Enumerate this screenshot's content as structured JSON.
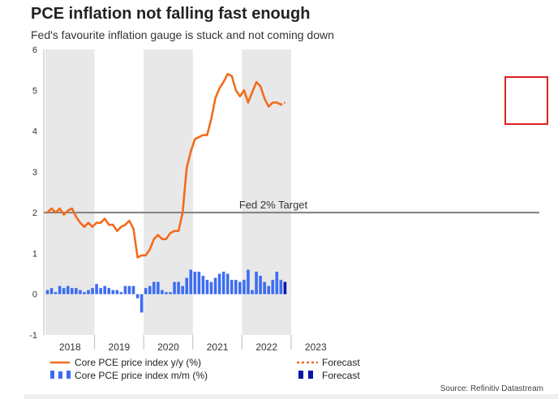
{
  "chart_data": {
    "type": "line",
    "title": "PCE inflation not falling fast enough",
    "subtitle": "Fed's favourite inflation gauge is stuck and not coming down",
    "source": "Source: Refinitiv Datastream",
    "ylim": [
      -1,
      6
    ],
    "y_ticks": [
      "-1",
      "0",
      "1",
      "2",
      "3",
      "4",
      "5",
      "6"
    ],
    "x_tick_labels": [
      "2018",
      "2019",
      "2020",
      "2021",
      "2022",
      "2023"
    ],
    "x_start": "2018-01",
    "shaded_years": [
      "2018",
      "2020",
      "2022"
    ],
    "grid": false,
    "reference_line": {
      "label": "Fed 2% Target",
      "value": 2
    },
    "series": [
      {
        "name": "Core PCE price index y/y (%)",
        "kind": "line",
        "color": "#f26b1d",
        "values": [
          2.0,
          2.1,
          2.0,
          2.1,
          1.95,
          2.05,
          2.1,
          1.9,
          1.75,
          1.65,
          1.75,
          1.65,
          1.75,
          1.75,
          1.85,
          1.7,
          1.7,
          1.55,
          1.65,
          1.7,
          1.8,
          1.6,
          0.9,
          0.95,
          0.95,
          1.1,
          1.35,
          1.45,
          1.35,
          1.35,
          1.5,
          1.55,
          1.55,
          2.0,
          3.1,
          3.5,
          3.8,
          3.85,
          3.9,
          3.9,
          4.3,
          4.8,
          5.05,
          5.2,
          5.4,
          5.35,
          5.0,
          4.85,
          5.0,
          4.7,
          4.95,
          5.2,
          5.1,
          4.8,
          4.6,
          4.7,
          4.7,
          4.65
        ]
      },
      {
        "name": "Forecast",
        "kind": "line-forecast",
        "color": "#f26b1d",
        "values": [
          4.65,
          4.7
        ]
      },
      {
        "name": "Core PCE price index m/m (%)",
        "kind": "bar",
        "color": "#3d6df2",
        "values": [
          0.1,
          0.15,
          0.05,
          0.2,
          0.15,
          0.2,
          0.15,
          0.15,
          0.1,
          0.05,
          0.1,
          0.15,
          0.25,
          0.15,
          0.2,
          0.15,
          0.1,
          0.1,
          0.05,
          0.2,
          0.2,
          0.2,
          -0.1,
          -0.45,
          0.15,
          0.2,
          0.3,
          0.3,
          0.1,
          0.05,
          0.05,
          0.3,
          0.3,
          0.2,
          0.4,
          0.6,
          0.55,
          0.55,
          0.45,
          0.35,
          0.3,
          0.4,
          0.5,
          0.55,
          0.5,
          0.35,
          0.35,
          0.3,
          0.35,
          0.6,
          0.1,
          0.55,
          0.45,
          0.3,
          0.2,
          0.35,
          0.55,
          0.35
        ]
      },
      {
        "name": "Forecast",
        "kind": "bar-forecast",
        "color": "#0a14a8",
        "values": [
          0.3
        ]
      }
    ],
    "legend": [
      {
        "label": "Core PCE price index y/y (%)",
        "style": "line"
      },
      {
        "label": "Forecast",
        "style": "dotted-line"
      },
      {
        "label": "Core PCE price index m/m (%)",
        "style": "bar"
      },
      {
        "label": "Forecast",
        "style": "dark-bar"
      }
    ],
    "legend_position": "bottom",
    "colors": {
      "line": "#f26b1d",
      "bars": "#3d6df2",
      "forecast_bar": "#0a14a8",
      "target_line": "#7f7f7f",
      "shading": "#e8e8e8",
      "highlight_box": "#e02020"
    }
  }
}
